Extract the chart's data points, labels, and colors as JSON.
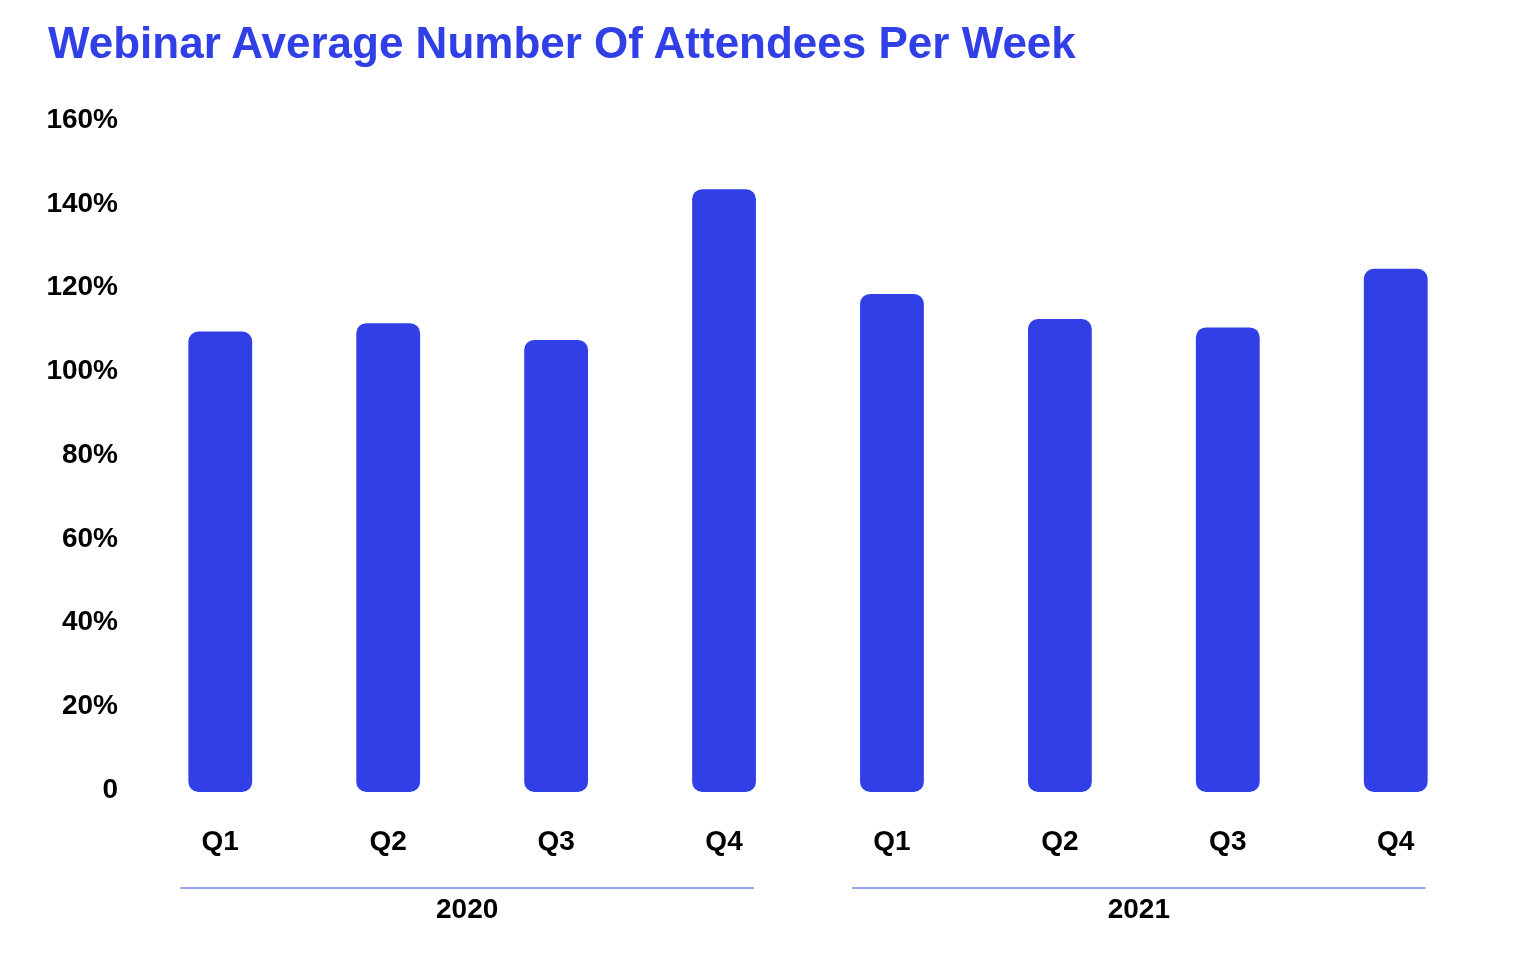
{
  "chart_data": {
    "type": "bar",
    "title": "Webinar Average Number Of Attendees Per Week",
    "categories": [
      "Q1",
      "Q2",
      "Q3",
      "Q4",
      "Q1",
      "Q2",
      "Q3",
      "Q4"
    ],
    "values": [
      109,
      111,
      107,
      143,
      118,
      112,
      110,
      124
    ],
    "color": "#3140e6",
    "ylim": [
      0,
      160
    ],
    "yticks": [
      {
        "value": 0,
        "label": "0"
      },
      {
        "value": 20,
        "label": "20%"
      },
      {
        "value": 40,
        "label": "40%"
      },
      {
        "value": 60,
        "label": "60%"
      },
      {
        "value": 80,
        "label": "80%"
      },
      {
        "value": 100,
        "label": "100%"
      },
      {
        "value": 120,
        "label": "120%"
      },
      {
        "value": 140,
        "label": "140%"
      },
      {
        "value": 160,
        "label": "160%"
      }
    ],
    "grid": false,
    "annotations": [
      "2020",
      "2021"
    ]
  }
}
